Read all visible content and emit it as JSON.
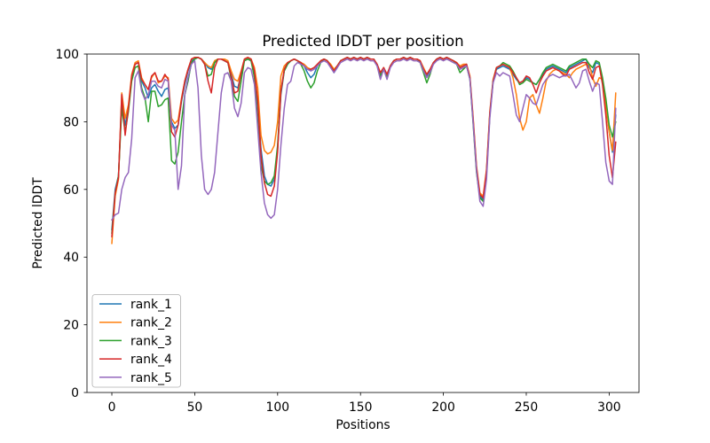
{
  "figure": {
    "background": "#ffffff"
  },
  "chart_data": {
    "type": "line",
    "title": "Predicted lDDT per position",
    "xlabel": "Positions",
    "ylabel": "Predicted lDDT",
    "xlim": [
      -15,
      318
    ],
    "ylim": [
      0,
      100
    ],
    "x_ticks": [
      0,
      50,
      100,
      150,
      200,
      250,
      300
    ],
    "y_ticks": [
      0,
      20,
      40,
      60,
      80,
      100
    ],
    "grid": false,
    "legend": {
      "position": "lower left",
      "frame": true,
      "entries": [
        "rank_1",
        "rank_2",
        "rank_3",
        "rank_4",
        "rank_5"
      ]
    },
    "x_start": 0,
    "x_step": 2,
    "series": [
      {
        "name": "rank_1",
        "color": "#1f77b4",
        "values": [
          48,
          60,
          64,
          86,
          79,
          84,
          93,
          97,
          97.5,
          92,
          90,
          87,
          90,
          91,
          89,
          87.5,
          89.5,
          90,
          80,
          78,
          79,
          86,
          91,
          95,
          98,
          98.5,
          99,
          98.5,
          97.5,
          96,
          95.5,
          97.5,
          98.5,
          98.5,
          98,
          97.5,
          94,
          90.5,
          90,
          94,
          98,
          98.5,
          98,
          94,
          85,
          72,
          64,
          61.5,
          61,
          63,
          72,
          88,
          95,
          97,
          98,
          98.5,
          98,
          97.5,
          96.5,
          94.5,
          93,
          94,
          96.5,
          98,
          98.5,
          98,
          96.5,
          94.5,
          96,
          98,
          98.5,
          99,
          98.5,
          99,
          98.5,
          99,
          98.5,
          99,
          98.5,
          98.5,
          97,
          94,
          96,
          93.5,
          96.5,
          98,
          98.5,
          98.5,
          99,
          98.5,
          99,
          98.5,
          98.5,
          98,
          95.5,
          93.5,
          95,
          97.5,
          98.5,
          99,
          98.5,
          99,
          98.5,
          98,
          97.5,
          96,
          96.5,
          97,
          93,
          80,
          66,
          58,
          57,
          65,
          82,
          92,
          95.5,
          96,
          96.5,
          96,
          95.5,
          94,
          92.5,
          91.5,
          92,
          93,
          92.5,
          91.5,
          91,
          92.5,
          94,
          95.5,
          96,
          96.5,
          96,
          95.5,
          95,
          94.5,
          96,
          96.5,
          97,
          97.5,
          98,
          98.5,
          96,
          94.5,
          97.5,
          97,
          92,
          85,
          77,
          71,
          82
        ]
      },
      {
        "name": "rank_2",
        "color": "#ff7f0e",
        "values": [
          44,
          58,
          63,
          88.5,
          81,
          85,
          94,
          97.5,
          98,
          93,
          91,
          89.5,
          93,
          94.5,
          91.5,
          92,
          93.5,
          93,
          81,
          79.5,
          80.5,
          87,
          92,
          95.5,
          98.5,
          99,
          99,
          98.5,
          97.5,
          96.5,
          96,
          98,
          98.5,
          98.5,
          98.5,
          98,
          95,
          92.5,
          92,
          95,
          98.5,
          99,
          98.5,
          96,
          90,
          76,
          71.5,
          70.5,
          71,
          73,
          80,
          93.5,
          96.5,
          97.5,
          98,
          98.5,
          98,
          97.5,
          97,
          96,
          95.5,
          96,
          97,
          98,
          98.5,
          98,
          97,
          95.5,
          96.5,
          98,
          98.5,
          99,
          98.5,
          99,
          98.5,
          99,
          98.5,
          99,
          98.5,
          98.5,
          97,
          94.5,
          96,
          94,
          96.5,
          98,
          98.5,
          98.5,
          99,
          98.5,
          99,
          98.5,
          98.5,
          98,
          96,
          94,
          95.5,
          97.5,
          98.5,
          99,
          98.5,
          99,
          98.5,
          98,
          97.5,
          96.5,
          97,
          97,
          93.5,
          81,
          67,
          59,
          58,
          66,
          83,
          92.5,
          96,
          96.5,
          97,
          96.5,
          96,
          93,
          88,
          81,
          77.5,
          80,
          87,
          88,
          85,
          82.5,
          87,
          92,
          94,
          95,
          95.5,
          95,
          94.5,
          94,
          93,
          94.5,
          95.5,
          96,
          96.5,
          97,
          97,
          93,
          90.5,
          93,
          92.5,
          85,
          77,
          71.5,
          88.5
        ]
      },
      {
        "name": "rank_3",
        "color": "#2ca02c",
        "values": [
          47,
          59,
          64,
          84,
          77,
          83,
          92,
          96,
          96.5,
          90,
          87,
          80,
          89,
          89,
          84.5,
          85,
          86.5,
          87,
          68.5,
          67.5,
          71,
          80,
          88,
          92,
          97.5,
          98.5,
          99,
          98.5,
          97,
          93.5,
          94,
          97.5,
          98.5,
          98.5,
          98,
          97.5,
          92.5,
          87.5,
          86,
          92,
          98,
          98.5,
          98,
          93,
          80,
          67,
          62.5,
          61.5,
          62,
          64,
          73,
          89,
          95,
          97,
          98,
          98.5,
          98,
          97,
          95,
          92,
          90,
          91.5,
          95,
          97.5,
          98.5,
          98,
          96.5,
          95,
          96.5,
          98,
          98.5,
          99,
          98.5,
          99,
          98.5,
          99,
          98.5,
          99,
          98.5,
          98.5,
          96.5,
          93.5,
          95.5,
          93,
          96.5,
          98,
          98.5,
          98.5,
          99,
          98.5,
          99,
          98.5,
          98.5,
          97.5,
          94.5,
          91.5,
          94,
          97.5,
          98.5,
          99,
          98.5,
          99,
          98.5,
          98,
          97,
          94.5,
          95.5,
          96.5,
          92.5,
          79,
          65,
          57.5,
          56.5,
          64.5,
          82,
          92,
          96,
          96.5,
          97.5,
          97,
          96.5,
          95,
          93,
          91,
          91.5,
          92.5,
          92,
          91.5,
          91,
          92.5,
          94.5,
          96,
          96.5,
          97,
          96.5,
          96,
          95.5,
          95,
          96.5,
          97,
          97.5,
          98,
          98.5,
          98.5,
          97,
          96,
          98,
          97.5,
          93,
          87,
          79,
          75.5,
          80
        ]
      },
      {
        "name": "rank_4",
        "color": "#d62728",
        "values": [
          46,
          59,
          63.5,
          88,
          76,
          84,
          93.5,
          97,
          97.5,
          92.5,
          91,
          89.5,
          93.5,
          94.5,
          92,
          92,
          94,
          92.5,
          77,
          75.5,
          79,
          86.5,
          92,
          95.5,
          98.5,
          99,
          99,
          98.5,
          97,
          92,
          88.5,
          96,
          98.5,
          98.5,
          98,
          97.5,
          93.5,
          88.5,
          89,
          94.5,
          98.5,
          99,
          98.5,
          95,
          86,
          70,
          62,
          58.5,
          58,
          61,
          71,
          89,
          95.5,
          97.5,
          98,
          98.5,
          98,
          97.5,
          96.5,
          95.5,
          95.5,
          96,
          97,
          98,
          98.5,
          98,
          96.5,
          95,
          96.5,
          98,
          98.5,
          99,
          98.5,
          99,
          98.5,
          99,
          98.5,
          99,
          98.5,
          98.5,
          97,
          94.5,
          96,
          94,
          96.5,
          98,
          98.5,
          98.5,
          99,
          98.5,
          99,
          98.5,
          98.5,
          98,
          95.5,
          94,
          95.5,
          97.5,
          98.5,
          99,
          98.5,
          99,
          98.5,
          98,
          97.5,
          96,
          96.5,
          97,
          93,
          80.5,
          66.5,
          58.5,
          57.5,
          65.5,
          82.5,
          92,
          96,
          96.5,
          97,
          96.5,
          96,
          94.5,
          93,
          91.5,
          92,
          93.5,
          93,
          91,
          88.5,
          91.5,
          93.5,
          95,
          95.5,
          96,
          95.5,
          95,
          94,
          93.5,
          95.5,
          96,
          96.5,
          97,
          97.5,
          97.5,
          94.5,
          92.5,
          96,
          96.5,
          91,
          82,
          70,
          63.5,
          74
        ]
      },
      {
        "name": "rank_5",
        "color": "#9467bd",
        "values": [
          51,
          52.5,
          53,
          60,
          63.5,
          65,
          75,
          93,
          95,
          89,
          86.5,
          88,
          92,
          92,
          90.5,
          90,
          92.5,
          92,
          79,
          77.5,
          60,
          67,
          88,
          93,
          97,
          98,
          90,
          70,
          60,
          58.5,
          60,
          65,
          77,
          88.5,
          94,
          94.5,
          92,
          84,
          81.5,
          85.5,
          94.5,
          96,
          95.5,
          91,
          78,
          65,
          56,
          52.5,
          51.5,
          52.5,
          60,
          73,
          84,
          91,
          92,
          96.5,
          97.5,
          97,
          96.5,
          95.5,
          95,
          95.5,
          96.5,
          97.5,
          98,
          97.5,
          96,
          94.5,
          96,
          97.5,
          98,
          98.5,
          98,
          98.5,
          98,
          98.5,
          98,
          98.5,
          98,
          98,
          96.5,
          92.5,
          95.5,
          92.5,
          96,
          97.5,
          98,
          98,
          98.5,
          98,
          98.5,
          98,
          98,
          97.5,
          95,
          93,
          94.5,
          97,
          98,
          98.5,
          98,
          98.5,
          98,
          97.5,
          97,
          95.5,
          96,
          96.5,
          92.5,
          79.5,
          65.5,
          56.5,
          55,
          63,
          81,
          91.5,
          94.5,
          93.5,
          94.5,
          94,
          93.5,
          88,
          82,
          80,
          84,
          88,
          87,
          85.5,
          85,
          88,
          91,
          92.5,
          93.5,
          94,
          93.5,
          93,
          93.5,
          93.5,
          94,
          92,
          90,
          91.5,
          95,
          95.5,
          92,
          89,
          91.5,
          91,
          80,
          68,
          62.5,
          61.5,
          84
        ]
      }
    ]
  }
}
